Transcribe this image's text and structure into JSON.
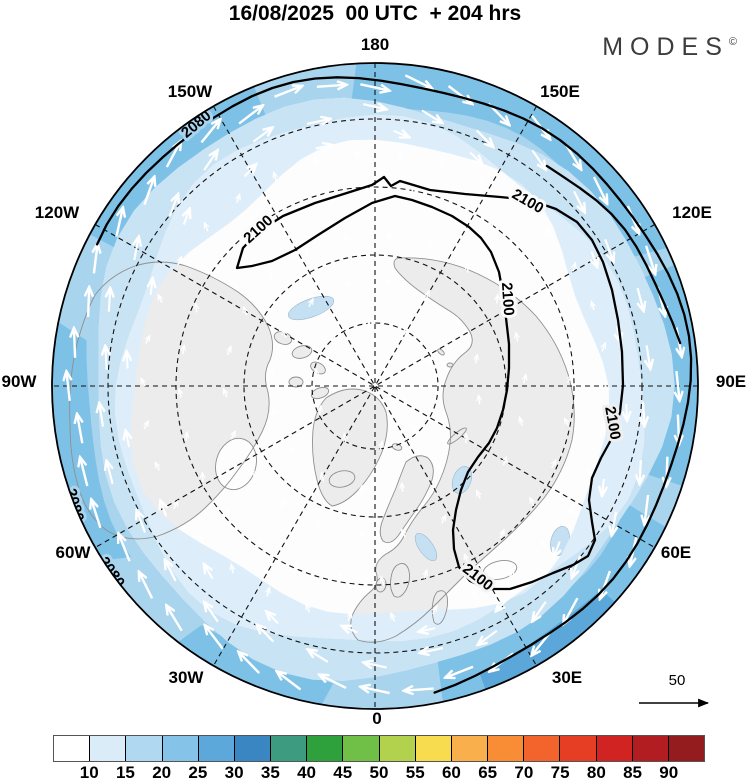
{
  "title": "16/08/2025  00 UTC  + 204 hrs",
  "brand": {
    "name": "MODES",
    "mark": "©"
  },
  "map": {
    "longitude_labels": [
      "180",
      "150E",
      "120E",
      "90E",
      "60E",
      "30E",
      "0",
      "30W",
      "60W",
      "90W",
      "120W",
      "150W"
    ],
    "contour_2080": "2080",
    "contour_2100": "2100",
    "reference_vector_label": "50"
  },
  "colors": {
    "ring_outer": "#a9d4ee",
    "ring_mid": "#c8e3f4",
    "ring_inner": "#ddeefa",
    "ring_deep": "#7ec1e7",
    "ring_deepest": "#5ba7da",
    "interior": "#fdfdfe",
    "land": "#ececec",
    "coastline": "#8f8f8f",
    "lake": "#c5e0f2",
    "contour": "#000000",
    "arrow": "#ffffff"
  },
  "colorbar": {
    "tick_labels": [
      "10",
      "15",
      "20",
      "25",
      "30",
      "35",
      "40",
      "45",
      "50",
      "55",
      "60",
      "65",
      "70",
      "75",
      "80",
      "85",
      "90"
    ],
    "cell_colors": [
      "#ffffff",
      "#d9ecf8",
      "#b0d9f1",
      "#86c3e8",
      "#5ca8da",
      "#3a86c2",
      "#3d9b80",
      "#2ea13d",
      "#70bf47",
      "#b2d24d",
      "#f7dc4f",
      "#f9b04c",
      "#f88d35",
      "#f2642b",
      "#e63e25",
      "#d22323",
      "#b21d22",
      "#941b1e"
    ]
  },
  "chart_data": {
    "type": "contour-map",
    "title": "16/08/2025 00 UTC + 204 hrs",
    "source_logo": "MODES©",
    "projection": "Northern Hemisphere polar view; 0° longitude at bottom, 180° at top, meridians labeled every 30°",
    "meridian_labels": [
      "180",
      "150E",
      "120E",
      "90E",
      "60E",
      "30E",
      "0",
      "30W",
      "60W",
      "90W",
      "120W",
      "150W"
    ],
    "contour_levels_labeled": [
      2080,
      2100
    ],
    "contour_label_counts": {
      "2080": 3,
      "2100": 5
    },
    "shaded_field": "blue ring of values ~10-30 around the map periphery, interior below 10 (white)",
    "colorbar_ticks": [
      10,
      15,
      20,
      25,
      30,
      35,
      40,
      45,
      50,
      55,
      60,
      65,
      70,
      75,
      80,
      85,
      90
    ],
    "colorbar_colors": [
      "#ffffff",
      "#d9ecf8",
      "#b0d9f1",
      "#86c3e8",
      "#5ca8da",
      "#3a86c2",
      "#3d9b80",
      "#2ea13d",
      "#70bf47",
      "#b2d24d",
      "#f7dc4f",
      "#f9b04c",
      "#f88d35",
      "#f2642b",
      "#e63e25",
      "#d22323",
      "#b21d22",
      "#941b1e"
    ],
    "vector_field": "white wind arrows circulating clockwise around the periphery",
    "reference_vector_value": 50,
    "legend_position": "colorbar bottom, reference vector lower right",
    "grid": "dashed graticule: latitude circles and meridians every 30 degrees"
  }
}
